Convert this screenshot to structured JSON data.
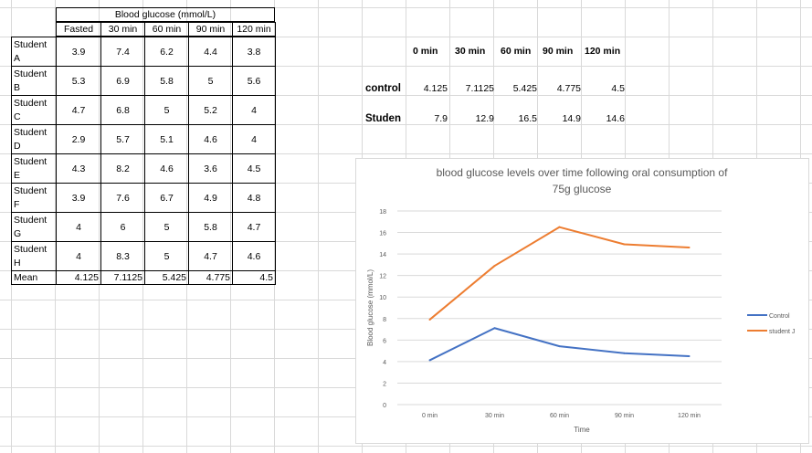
{
  "table": {
    "group_header": "Blood glucose (mmol/L)",
    "headers": [
      "Fasted",
      "30 min",
      "60 min",
      "90 min",
      "120 min"
    ],
    "rows": [
      {
        "label": "Student A",
        "values": [
          "3.9",
          "7.4",
          "6.2",
          "4.4",
          "3.8"
        ]
      },
      {
        "label": "Student B",
        "values": [
          "5.3",
          "6.9",
          "5.8",
          "5",
          "5.6"
        ]
      },
      {
        "label": "Student C",
        "values": [
          "4.7",
          "6.8",
          "5",
          "5.2",
          "4"
        ]
      },
      {
        "label": "Student D",
        "values": [
          "2.9",
          "5.7",
          "5.1",
          "4.6",
          "4"
        ]
      },
      {
        "label": "Student E",
        "values": [
          "4.3",
          "8.2",
          "4.6",
          "3.6",
          "4.5"
        ]
      },
      {
        "label": "Student F",
        "values": [
          "3.9",
          "7.6",
          "6.7",
          "4.9",
          "4.8"
        ]
      },
      {
        "label": "Student G",
        "values": [
          "4",
          "6",
          "5",
          "5.8",
          "4.7"
        ]
      },
      {
        "label": "Student H",
        "values": [
          "4",
          "8.3",
          "5",
          "4.7",
          "4.6"
        ]
      }
    ],
    "mean": {
      "label": "Mean",
      "values": [
        "4.125",
        "7.1125",
        "5.425",
        "4.775",
        "4.5"
      ]
    }
  },
  "summary": {
    "headers": [
      "0 min",
      "30 min",
      "60 min",
      "90 min",
      "120 min"
    ],
    "rows": [
      {
        "label": "control",
        "values": [
          "4.125",
          "7.1125",
          "5.425",
          "4.775",
          "4.5"
        ]
      },
      {
        "label": "Studen",
        "values": [
          "7.9",
          "12.9",
          "16.5",
          "14.9",
          "14.6"
        ]
      }
    ]
  },
  "chart_data": {
    "type": "line",
    "title": "blood glucose levels over time following oral consumption of 75g glucose",
    "xlabel": "Time",
    "ylabel": "Blood glucose (mmol/L)",
    "categories": [
      "0 min",
      "30 min",
      "60 min",
      "90 min",
      "120 min"
    ],
    "ylim": [
      0,
      18
    ],
    "yticks": [
      0,
      2,
      4,
      6,
      8,
      10,
      12,
      14,
      16,
      18
    ],
    "grid": true,
    "legend": "right",
    "series": [
      {
        "name": "Control",
        "values": [
          4.125,
          7.1125,
          5.425,
          4.775,
          4.5
        ],
        "color": "#4472c4"
      },
      {
        "name": "student J",
        "values": [
          7.9,
          12.9,
          16.5,
          14.9,
          14.6
        ],
        "color": "#ed7d31"
      }
    ]
  }
}
